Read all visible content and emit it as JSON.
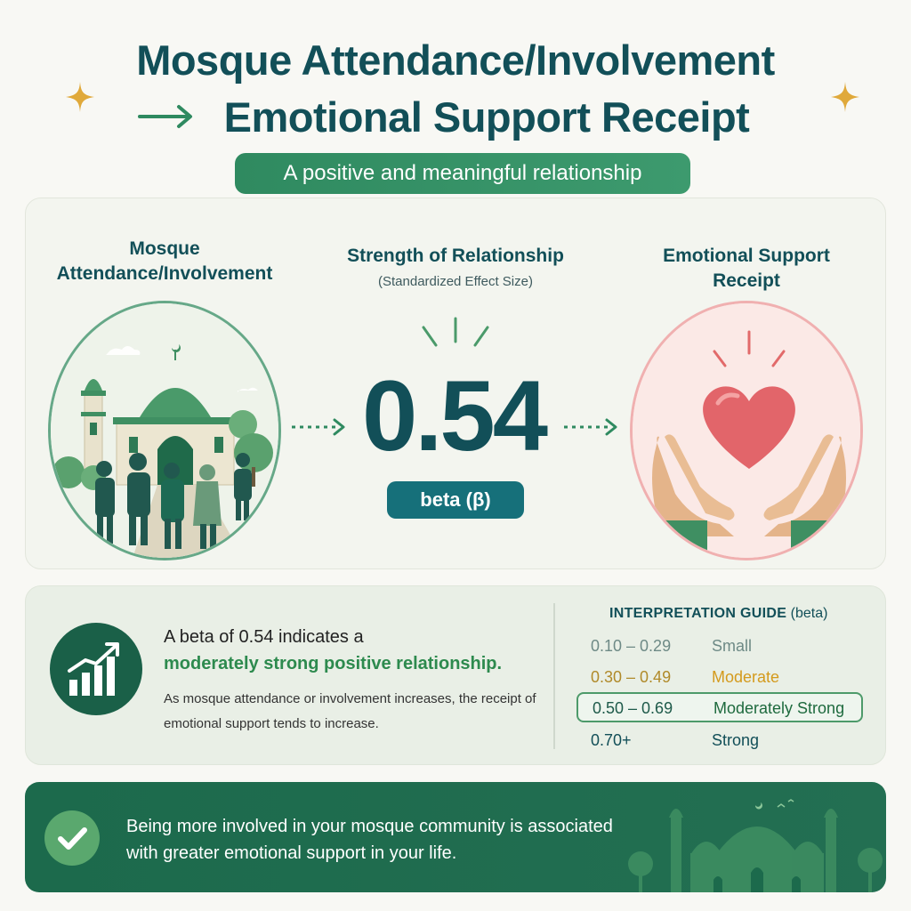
{
  "title": {
    "line1": "Mosque Attendance/Involvement",
    "line2": "Emotional Support Receipt",
    "arrow_icon": "right-arrow-icon",
    "accent_icons": [
      "sparkle-icon",
      "sparkle-icon"
    ]
  },
  "subtitle": "A positive and meaningful relationship",
  "left_col": {
    "heading_line1": "Mosque",
    "heading_line2": "Attendance/Involvement",
    "illustration_icon": "mosque-with-people-icon"
  },
  "center_col": {
    "heading": "Strength of Relationship",
    "subheading": "(Standardized Effect Size)",
    "value": "0.54",
    "badge": "beta (β)"
  },
  "right_col": {
    "heading_line1": "Emotional Support",
    "heading_line2": "Receipt",
    "illustration_icon": "heart-in-hands-icon"
  },
  "explanation": {
    "icon": "bar-chart-trend-icon",
    "line1": "A beta of 0.54 indicates a",
    "line2": "moderately strong positive relationship.",
    "line3": "As mosque attendance or involvement increases, the receipt of emotional support tends to increase."
  },
  "guide": {
    "title_bold": "INTERPRETATION GUIDE",
    "title_rest": " (beta)",
    "rows": [
      {
        "range": "0.10 – 0.29",
        "label": "Small",
        "color": "#6e8a86"
      },
      {
        "range": "0.30 – 0.49",
        "label": "Moderate",
        "color": "#d49a1c"
      },
      {
        "range": "0.50 – 0.69",
        "label": "Moderately Strong",
        "color": "#1e6a3e",
        "highlighted": true
      },
      {
        "range": "0.70+",
        "label": "Strong",
        "color": "#124f58"
      }
    ]
  },
  "banner": {
    "icon": "check-circle-icon",
    "text": "Being more involved in your mosque community is associated with greater emotional support in your life.",
    "decoration_icon": "mosque-silhouette-icon"
  },
  "colors": {
    "title": "#124f58",
    "accent_green": "#2f8a60",
    "teal": "#16707a",
    "banner": "#1c6a4c",
    "gold": "#e0a93a"
  }
}
